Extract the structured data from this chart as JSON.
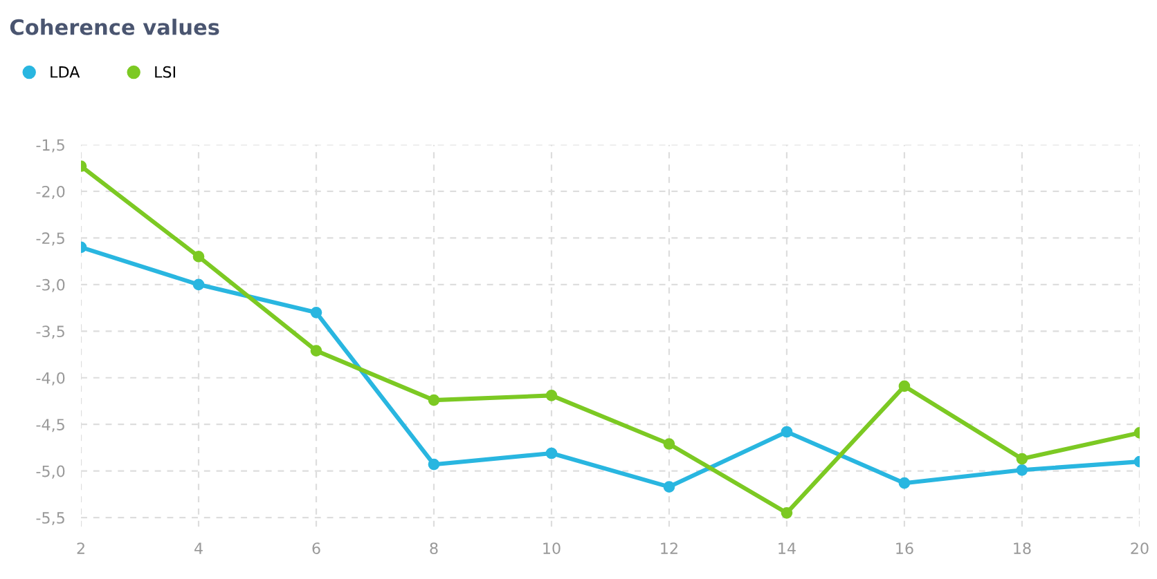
{
  "chart_data": {
    "type": "line",
    "title": "Coherence values",
    "x": [
      2,
      4,
      6,
      8,
      10,
      12,
      14,
      16,
      18,
      20
    ],
    "series": [
      {
        "name": "LDA",
        "color": "#29b6e0",
        "values": [
          -2.6,
          -3.0,
          -3.3,
          -4.93,
          -4.81,
          -5.17,
          -4.58,
          -5.13,
          -4.99,
          -4.9
        ]
      },
      {
        "name": "LSI",
        "color": "#7cc923",
        "values": [
          -1.73,
          -2.7,
          -3.71,
          -4.24,
          -4.19,
          -4.71,
          -5.45,
          -4.09,
          -4.87,
          -4.59
        ]
      }
    ],
    "xlim": [
      2,
      20
    ],
    "xticks": [
      2,
      4,
      6,
      8,
      10,
      12,
      14,
      16,
      18,
      20
    ],
    "ylim": [
      -5.6,
      -1.5
    ],
    "yticks": [
      {
        "value": -1.5,
        "label": "-1,5"
      },
      {
        "value": -2.0,
        "label": "-2,0"
      },
      {
        "value": -2.5,
        "label": "-2,5"
      },
      {
        "value": -3.0,
        "label": "-3,0"
      },
      {
        "value": -3.5,
        "label": "-3,5"
      },
      {
        "value": -4.0,
        "label": "-4,0"
      },
      {
        "value": -4.5,
        "label": "-4,5"
      },
      {
        "value": -5.0,
        "label": "-5,0"
      },
      {
        "value": -5.5,
        "label": "-5,5"
      }
    ],
    "grid": true,
    "legend": "top left",
    "marker": "circle",
    "line_style": "solid"
  }
}
